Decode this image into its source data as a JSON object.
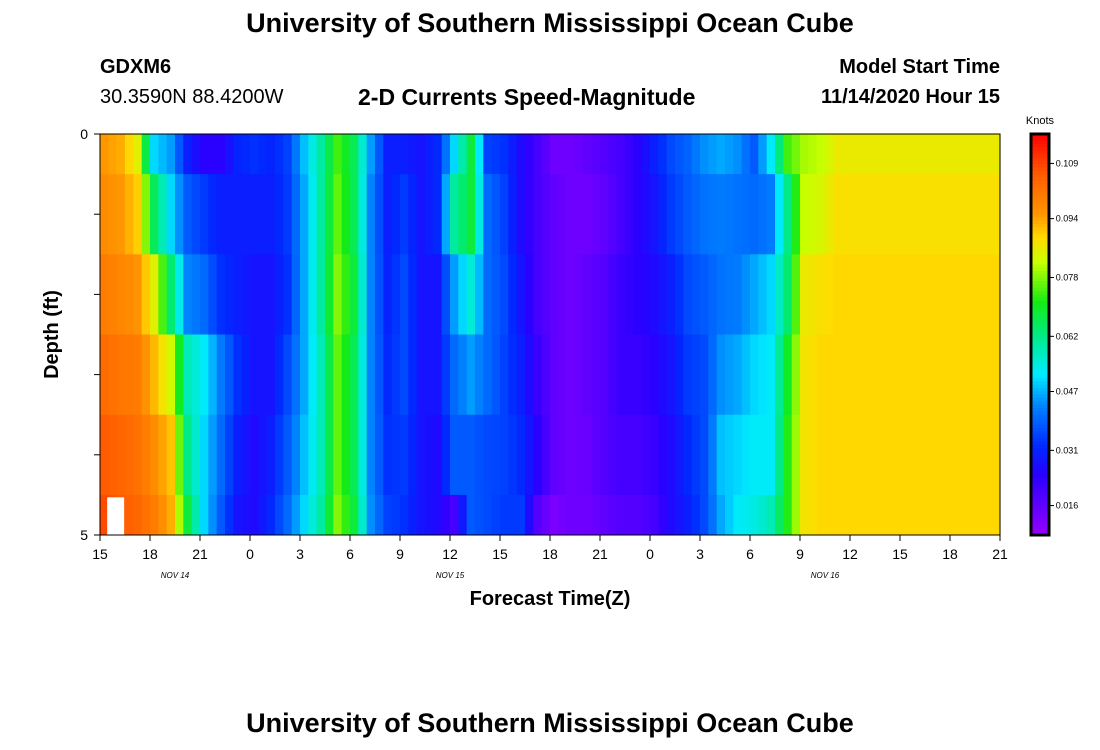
{
  "page": {
    "title": "University of Southern Mississippi Ocean Cube",
    "footer_title": "University of Southern Mississippi Ocean Cube",
    "station": "GDXM6",
    "coordinates": "30.3590N 88.4200W",
    "subtitle": "2-D Currents Speed-Magnitude",
    "model_start_label": "Model Start Time",
    "model_start_value": "11/14/2020 Hour 15"
  },
  "chart_data": {
    "type": "heatmap",
    "title": "2-D Currents Speed-Magnitude",
    "xlabel": "Forecast Time(Z)",
    "ylabel": "Depth (ft)",
    "x_range_hours": [
      0,
      54
    ],
    "y_range": [
      0,
      5
    ],
    "x_tick_labels": [
      "15",
      "18",
      "21",
      "0",
      "3",
      "6",
      "9",
      "12",
      "15",
      "18",
      "21",
      "0",
      "3",
      "6",
      "9",
      "12",
      "15",
      "18",
      "21"
    ],
    "y_tick_labels": [
      "0",
      "",
      "",
      "",
      "",
      "5"
    ],
    "date_labels": [
      {
        "text": "NOV 14",
        "hour": 4.5
      },
      {
        "text": "NOV 15",
        "hour": 21
      },
      {
        "text": "NOV 16",
        "hour": 43.5
      }
    ],
    "colorbar": {
      "unit": "Knots",
      "min": 0.008,
      "max": 0.117,
      "tick_labels": [
        "0.109",
        "0.094",
        "0.078",
        "0.062",
        "0.047",
        "0.031",
        "0.016"
      ],
      "tick_values": [
        0.109,
        0.094,
        0.078,
        0.062,
        0.047,
        0.031,
        0.016
      ]
    },
    "depth_layers": [
      0,
      0.5,
      1.5,
      2.5,
      3.5,
      4.5,
      5
    ],
    "missing_cells": [
      {
        "hour": 0.25,
        "depth_layer": 5
      }
    ],
    "series": [
      {
        "hour": 0,
        "values": [
          0.095,
          0.097,
          0.1,
          0.103,
          0.106,
          0.108
        ]
      },
      {
        "hour": 1,
        "values": [
          0.093,
          0.095,
          0.098,
          0.101,
          0.104,
          0.106
        ]
      },
      {
        "hour": 2,
        "values": [
          0.085,
          0.09,
          0.096,
          0.1,
          0.102,
          0.104
        ]
      },
      {
        "hour": 3,
        "values": [
          0.05,
          0.066,
          0.085,
          0.092,
          0.097,
          0.1
        ]
      },
      {
        "hour": 4,
        "values": [
          0.045,
          0.05,
          0.064,
          0.083,
          0.091,
          0.093
        ]
      },
      {
        "hour": 5,
        "values": [
          0.03,
          0.038,
          0.043,
          0.058,
          0.062,
          0.068
        ]
      },
      {
        "hour": 6,
        "values": [
          0.024,
          0.034,
          0.04,
          0.052,
          0.05,
          0.05
        ]
      },
      {
        "hour": 7,
        "values": [
          0.024,
          0.03,
          0.033,
          0.042,
          0.04,
          0.038
        ]
      },
      {
        "hour": 8,
        "values": [
          0.031,
          0.03,
          0.03,
          0.033,
          0.03,
          0.028
        ]
      },
      {
        "hour": 9,
        "values": [
          0.033,
          0.03,
          0.028,
          0.028,
          0.026,
          0.026
        ]
      },
      {
        "hour": 10,
        "values": [
          0.031,
          0.03,
          0.028,
          0.028,
          0.03,
          0.032
        ]
      },
      {
        "hour": 11,
        "values": [
          0.035,
          0.034,
          0.033,
          0.036,
          0.038,
          0.04
        ]
      },
      {
        "hour": 12,
        "values": [
          0.048,
          0.046,
          0.046,
          0.046,
          0.048,
          0.05
        ]
      },
      {
        "hour": 13,
        "values": [
          0.06,
          0.06,
          0.06,
          0.058,
          0.058,
          0.06
        ]
      },
      {
        "hour": 14,
        "values": [
          0.074,
          0.076,
          0.078,
          0.076,
          0.076,
          0.078
        ]
      },
      {
        "hour": 15,
        "values": [
          0.066,
          0.066,
          0.068,
          0.066,
          0.066,
          0.068
        ]
      },
      {
        "hour": 16,
        "values": [
          0.045,
          0.043,
          0.043,
          0.043,
          0.043,
          0.044
        ]
      },
      {
        "hour": 17,
        "values": [
          0.03,
          0.03,
          0.031,
          0.032,
          0.033,
          0.035
        ]
      },
      {
        "hour": 18,
        "values": [
          0.03,
          0.034,
          0.036,
          0.036,
          0.034,
          0.033
        ]
      },
      {
        "hour": 19,
        "values": [
          0.028,
          0.028,
          0.028,
          0.028,
          0.028,
          0.028
        ]
      },
      {
        "hour": 20,
        "values": [
          0.032,
          0.032,
          0.028,
          0.028,
          0.026,
          0.026
        ]
      },
      {
        "hour": 21,
        "values": [
          0.05,
          0.06,
          0.045,
          0.04,
          0.038,
          0.02
        ]
      },
      {
        "hour": 22,
        "values": [
          0.068,
          0.068,
          0.055,
          0.045,
          0.038,
          0.038
        ]
      },
      {
        "hour": 23,
        "values": [
          0.035,
          0.04,
          0.04,
          0.04,
          0.036,
          0.036
        ]
      },
      {
        "hour": 24,
        "values": [
          0.033,
          0.035,
          0.036,
          0.035,
          0.035,
          0.034
        ]
      },
      {
        "hour": 25,
        "values": [
          0.026,
          0.026,
          0.028,
          0.03,
          0.032,
          0.034
        ]
      },
      {
        "hour": 26,
        "values": [
          0.02,
          0.02,
          0.02,
          0.022,
          0.024,
          0.018
        ]
      },
      {
        "hour": 27,
        "values": [
          0.014,
          0.016,
          0.016,
          0.016,
          0.016,
          0.012
        ]
      },
      {
        "hour": 28,
        "values": [
          0.014,
          0.014,
          0.014,
          0.014,
          0.014,
          0.014
        ]
      },
      {
        "hour": 29,
        "values": [
          0.016,
          0.014,
          0.016,
          0.016,
          0.015,
          0.014
        ]
      },
      {
        "hour": 30,
        "values": [
          0.018,
          0.016,
          0.018,
          0.018,
          0.018,
          0.016
        ]
      },
      {
        "hour": 31,
        "values": [
          0.02,
          0.02,
          0.022,
          0.022,
          0.02,
          0.018
        ]
      },
      {
        "hour": 32,
        "values": [
          0.024,
          0.024,
          0.024,
          0.022,
          0.02,
          0.018
        ]
      },
      {
        "hour": 33,
        "values": [
          0.03,
          0.028,
          0.026,
          0.024,
          0.022,
          0.02
        ]
      },
      {
        "hour": 34,
        "values": [
          0.036,
          0.034,
          0.03,
          0.028,
          0.026,
          0.026
        ]
      },
      {
        "hour": 35,
        "values": [
          0.039,
          0.038,
          0.036,
          0.034,
          0.032,
          0.03
        ]
      },
      {
        "hour": 36,
        "values": [
          0.044,
          0.041,
          0.038,
          0.036,
          0.036,
          0.036
        ]
      },
      {
        "hour": 37,
        "values": [
          0.046,
          0.042,
          0.041,
          0.044,
          0.048,
          0.046
        ]
      },
      {
        "hour": 38,
        "values": [
          0.044,
          0.041,
          0.042,
          0.046,
          0.05,
          0.052
        ]
      },
      {
        "hour": 39,
        "values": [
          0.038,
          0.04,
          0.046,
          0.05,
          0.052,
          0.054
        ]
      },
      {
        "hour": 40,
        "values": [
          0.052,
          0.042,
          0.05,
          0.052,
          0.052,
          0.058
        ]
      },
      {
        "hour": 41,
        "values": [
          0.074,
          0.062,
          0.064,
          0.07,
          0.072,
          0.072
        ]
      },
      {
        "hour": 42,
        "values": [
          0.08,
          0.082,
          0.086,
          0.087,
          0.087,
          0.087
        ]
      },
      {
        "hour": 43,
        "values": [
          0.082,
          0.084,
          0.088,
          0.089,
          0.089,
          0.089
        ]
      },
      {
        "hour": 44,
        "values": [
          0.086,
          0.088,
          0.089,
          0.089,
          0.089,
          0.089
        ]
      }
    ]
  }
}
